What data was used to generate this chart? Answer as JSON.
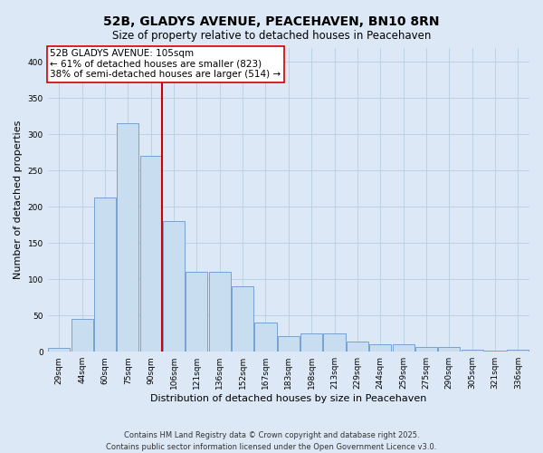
{
  "title": "52B, GLADYS AVENUE, PEACEHAVEN, BN10 8RN",
  "subtitle": "Size of property relative to detached houses in Peacehaven",
  "xlabel": "Distribution of detached houses by size in Peacehaven",
  "ylabel": "Number of detached properties",
  "categories": [
    "29sqm",
    "44sqm",
    "60sqm",
    "75sqm",
    "90sqm",
    "106sqm",
    "121sqm",
    "136sqm",
    "152sqm",
    "167sqm",
    "183sqm",
    "198sqm",
    "213sqm",
    "229sqm",
    "244sqm",
    "259sqm",
    "275sqm",
    "290sqm",
    "305sqm",
    "321sqm",
    "336sqm"
  ],
  "values": [
    5,
    45,
    213,
    315,
    270,
    180,
    110,
    110,
    90,
    40,
    22,
    25,
    25,
    14,
    10,
    10,
    6,
    6,
    3,
    1,
    3
  ],
  "bar_color": "#c9ddf0",
  "bar_edge_color": "#6699cc",
  "bar_linewidth": 0.6,
  "vline_x_index": 5,
  "vline_color": "#cc0000",
  "annotation_line1": "52B GLADYS AVENUE: 105sqm",
  "annotation_line2": "← 61% of detached houses are smaller (823)",
  "annotation_line3": "38% of semi-detached houses are larger (514) →",
  "annotation_box_facecolor": "#ffffff",
  "annotation_box_edgecolor": "#cc0000",
  "grid_color": "#b8cfe0",
  "background_color": "#dce8f5",
  "plot_background": "#dce8f5",
  "ylim": [
    0,
    420
  ],
  "yticks": [
    0,
    50,
    100,
    150,
    200,
    250,
    300,
    350,
    400
  ],
  "footer_line1": "Contains HM Land Registry data © Crown copyright and database right 2025.",
  "footer_line2": "Contains public sector information licensed under the Open Government Licence v3.0.",
  "title_fontsize": 10,
  "subtitle_fontsize": 8.5,
  "tick_fontsize": 6.5,
  "label_fontsize": 8,
  "annotation_fontsize": 7.5,
  "footer_fontsize": 6
}
